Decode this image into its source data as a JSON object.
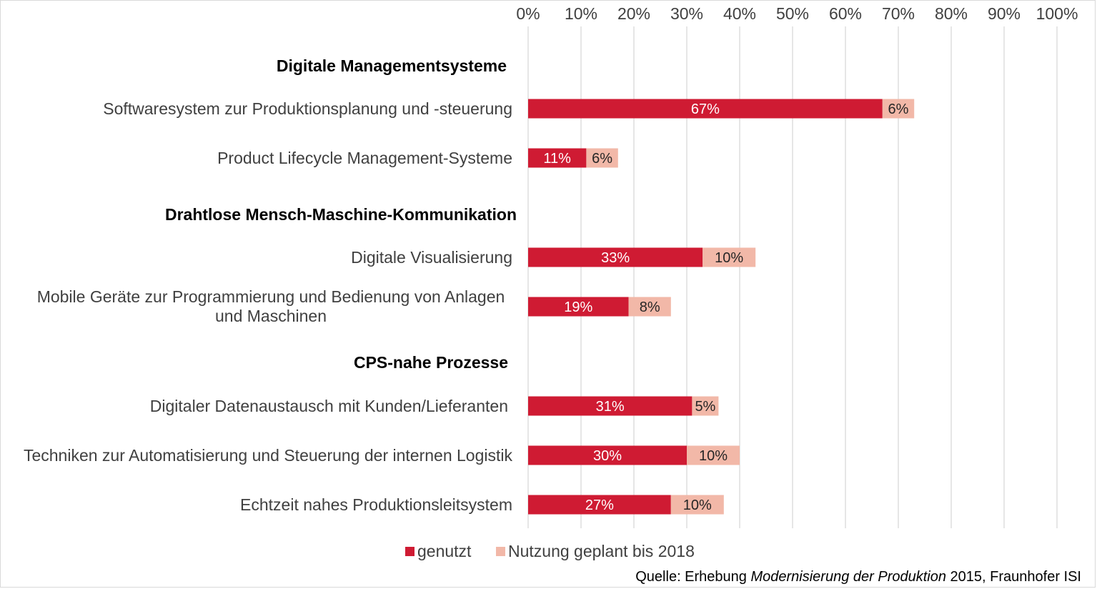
{
  "chart_data": {
    "type": "bar",
    "orientation": "horizontal",
    "stacked": true,
    "xlim": [
      0,
      100
    ],
    "x_ticks": [
      "0%",
      "10%",
      "20%",
      "30%",
      "40%",
      "50%",
      "60%",
      "70%",
      "80%",
      "90%",
      "100%"
    ],
    "x_axis_position": "top",
    "grid": true,
    "legend_position": "bottom",
    "groups": [
      {
        "label": "Digitale Managementsysteme",
        "categories": [
          {
            "label_lines": [
              "Softwaresystem zur Produktionsplanung und -steuerung"
            ],
            "values": [
              67,
              6
            ],
            "labels": [
              "67%",
              "6%"
            ]
          },
          {
            "label_lines": [
              "Product Lifecycle Management-Systeme"
            ],
            "values": [
              11,
              6
            ],
            "labels": [
              "11%",
              "6%"
            ]
          }
        ]
      },
      {
        "label": "Drahtlose Mensch-Maschine-Kommunikation",
        "categories": [
          {
            "label_lines": [
              "Digitale Visualisierung"
            ],
            "values": [
              33,
              10
            ],
            "labels": [
              "33%",
              "10%"
            ]
          },
          {
            "label_lines": [
              "Mobile Geräte zur Programmierung und Bedienung von Anlagen",
              "und Maschinen"
            ],
            "values": [
              19,
              8
            ],
            "labels": [
              "19%",
              "8%"
            ]
          }
        ]
      },
      {
        "label": "CPS-nahe Prozesse",
        "categories": [
          {
            "label_lines": [
              "Digitaler Datenaustausch mit Kunden/Lieferanten"
            ],
            "values": [
              31,
              5
            ],
            "labels": [
              "31%",
              "5%"
            ]
          },
          {
            "label_lines": [
              "Techniken zur Automatisierung und Steuerung der internen Logistik"
            ],
            "values": [
              30,
              10
            ],
            "labels": [
              "30%",
              "10%"
            ]
          },
          {
            "label_lines": [
              "Echtzeit nahes Produktionsleitsystem"
            ],
            "values": [
              27,
              10
            ],
            "labels": [
              "27%",
              "10%"
            ]
          }
        ]
      }
    ],
    "series": [
      {
        "name": "genutzt",
        "color": "#cf1b33"
      },
      {
        "name": "Nutzung geplant bis 2018",
        "color": "#f2b8a8"
      }
    ]
  },
  "source": {
    "prefix": "Quelle: Erhebung ",
    "italic": "Modernisierung der Produktion",
    "suffix": " 2015, Fraunhofer ISI"
  },
  "colors": {
    "gridline": "#d9d9d9",
    "used": "#cf1b33",
    "planned": "#f2b8a8"
  }
}
